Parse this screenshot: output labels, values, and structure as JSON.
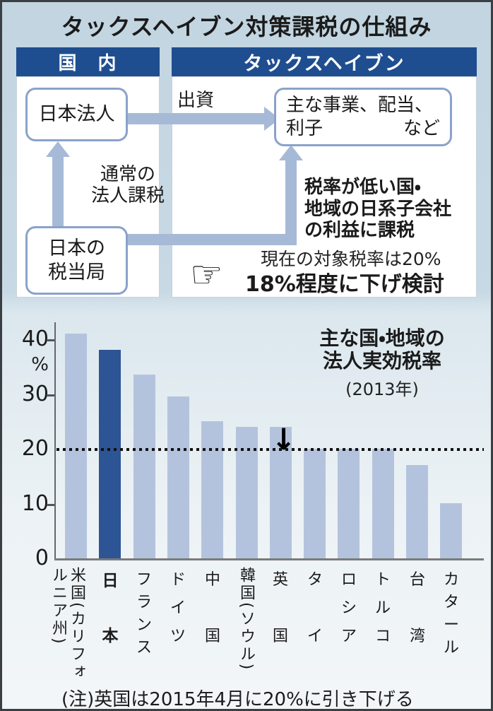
{
  "title": "タックスヘイブン対策課税の仕組み",
  "diagram": {
    "domestic_header": "国　内",
    "haven_header": "タックスヘイブン",
    "japan_corp_box": "日本法人",
    "tax_authority_line1": "日本の",
    "tax_authority_line2": "税当局",
    "business_box_line1": "主な事業、配当、",
    "business_box_line2_left": "利子",
    "business_box_line2_right": "など",
    "investment_label": "出資",
    "normal_tax_line1": "通常の",
    "normal_tax_line2": "法人課税",
    "levy_line1": "税率が低い国・",
    "levy_line2": "地域の日系子会社",
    "levy_line3": "の利益に課税",
    "current_rate_text": "現在の対象税率は20%",
    "proposal_text": "18%程度に下げ検討",
    "hand_icon": "☞"
  },
  "chart_data": {
    "type": "bar",
    "title_line1": "主な国・地域の",
    "title_line2": "法人実効税率",
    "subtitle": "(2013年)",
    "ylabel": "%",
    "ylim": [
      0,
      43
    ],
    "yticks": [
      0,
      10,
      20,
      30,
      40
    ],
    "reference_line": 20,
    "grid": "dotted reference line at 20% only",
    "legend_position": "none",
    "categories": [
      "米国(カリフォルニア州)",
      "日本",
      "フランス",
      "ドイツ",
      "中国",
      "韓国(ソウル)",
      "英国",
      "タイ",
      "ロシア",
      "トルコ",
      "台湾",
      "カタール"
    ],
    "values": [
      41,
      38,
      33.5,
      29.5,
      25,
      24,
      24,
      20,
      20,
      20,
      17,
      10
    ],
    "highlight_index": 1,
    "bold_label_index": 1,
    "annotation": {
      "index": 6,
      "symbol": "↓"
    },
    "colors": {
      "bar": "#b4c3dd",
      "highlight": "#2d5494",
      "header_navy": "#1f4e90",
      "arrow_blue": "#a6bad7"
    }
  },
  "note": "(注)英国は2015年4月に20%に引き下げる"
}
